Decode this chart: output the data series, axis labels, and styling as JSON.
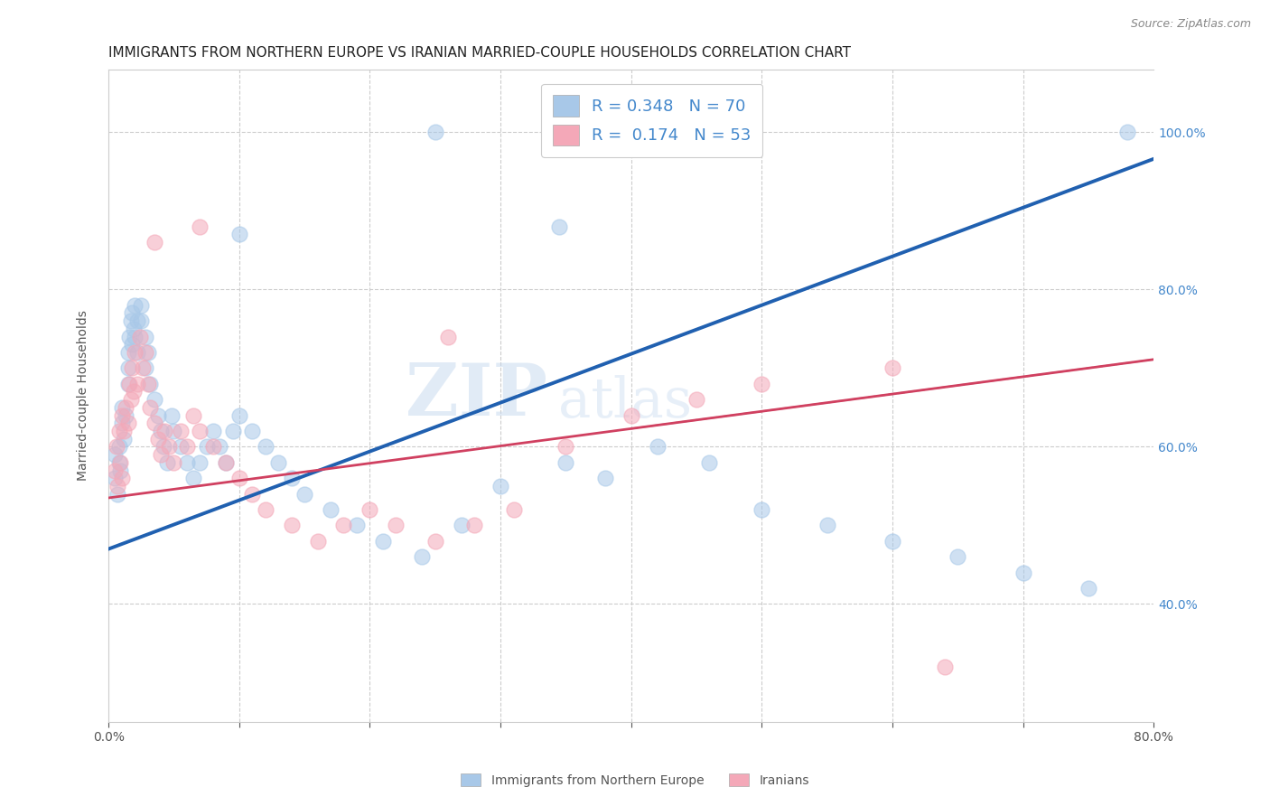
{
  "title": "IMMIGRANTS FROM NORTHERN EUROPE VS IRANIAN MARRIED-COUPLE HOUSEHOLDS CORRELATION CHART",
  "source": "Source: ZipAtlas.com",
  "ylabel": "Married-couple Households",
  "xlim": [
    0.0,
    0.8
  ],
  "ylim": [
    0.25,
    1.08
  ],
  "blue_R": 0.348,
  "blue_N": 70,
  "pink_R": 0.174,
  "pink_N": 53,
  "blue_color": "#a8c8e8",
  "pink_color": "#f4a8b8",
  "blue_line_color": "#2060b0",
  "pink_line_color": "#d04060",
  "watermark_zip": "ZIP",
  "watermark_atlas": "atlas",
  "legend_label_blue": "Immigrants from Northern Europe",
  "legend_label_pink": "Iranians",
  "blue_line_intercept": 0.47,
  "blue_line_slope": 0.62,
  "pink_line_intercept": 0.535,
  "pink_line_slope": 0.22,
  "blue_scatter_x": [
    0.005,
    0.005,
    0.007,
    0.008,
    0.008,
    0.009,
    0.01,
    0.01,
    0.012,
    0.013,
    0.015,
    0.015,
    0.015,
    0.016,
    0.017,
    0.018,
    0.018,
    0.019,
    0.02,
    0.02,
    0.022,
    0.022,
    0.025,
    0.025,
    0.028,
    0.028,
    0.03,
    0.032,
    0.035,
    0.038,
    0.04,
    0.042,
    0.045,
    0.048,
    0.05,
    0.055,
    0.06,
    0.065,
    0.07,
    0.075,
    0.08,
    0.085,
    0.09,
    0.095,
    0.1,
    0.11,
    0.12,
    0.13,
    0.14,
    0.15,
    0.17,
    0.19,
    0.21,
    0.24,
    0.27,
    0.3,
    0.35,
    0.38,
    0.42,
    0.46,
    0.5,
    0.55,
    0.6,
    0.65,
    0.7,
    0.75,
    0.345,
    0.1,
    0.25,
    0.78
  ],
  "blue_scatter_y": [
    0.56,
    0.59,
    0.54,
    0.6,
    0.58,
    0.57,
    0.63,
    0.65,
    0.61,
    0.64,
    0.7,
    0.72,
    0.68,
    0.74,
    0.76,
    0.73,
    0.77,
    0.75,
    0.78,
    0.74,
    0.76,
    0.72,
    0.78,
    0.76,
    0.74,
    0.7,
    0.72,
    0.68,
    0.66,
    0.64,
    0.62,
    0.6,
    0.58,
    0.64,
    0.62,
    0.6,
    0.58,
    0.56,
    0.58,
    0.6,
    0.62,
    0.6,
    0.58,
    0.62,
    0.64,
    0.62,
    0.6,
    0.58,
    0.56,
    0.54,
    0.52,
    0.5,
    0.48,
    0.46,
    0.5,
    0.55,
    0.58,
    0.56,
    0.6,
    0.58,
    0.52,
    0.5,
    0.48,
    0.46,
    0.44,
    0.42,
    0.88,
    0.87,
    1.0,
    1.0
  ],
  "pink_scatter_x": [
    0.005,
    0.006,
    0.007,
    0.008,
    0.009,
    0.01,
    0.01,
    0.012,
    0.013,
    0.015,
    0.016,
    0.017,
    0.018,
    0.019,
    0.02,
    0.022,
    0.024,
    0.026,
    0.028,
    0.03,
    0.032,
    0.035,
    0.038,
    0.04,
    0.043,
    0.046,
    0.05,
    0.055,
    0.06,
    0.065,
    0.07,
    0.08,
    0.09,
    0.1,
    0.11,
    0.12,
    0.14,
    0.16,
    0.18,
    0.2,
    0.22,
    0.25,
    0.28,
    0.31,
    0.35,
    0.4,
    0.45,
    0.5,
    0.6,
    0.64,
    0.07,
    0.035,
    0.26
  ],
  "pink_scatter_y": [
    0.57,
    0.6,
    0.55,
    0.62,
    0.58,
    0.56,
    0.64,
    0.62,
    0.65,
    0.63,
    0.68,
    0.66,
    0.7,
    0.67,
    0.72,
    0.68,
    0.74,
    0.7,
    0.72,
    0.68,
    0.65,
    0.63,
    0.61,
    0.59,
    0.62,
    0.6,
    0.58,
    0.62,
    0.6,
    0.64,
    0.62,
    0.6,
    0.58,
    0.56,
    0.54,
    0.52,
    0.5,
    0.48,
    0.5,
    0.52,
    0.5,
    0.48,
    0.5,
    0.52,
    0.6,
    0.64,
    0.66,
    0.68,
    0.7,
    0.32,
    0.88,
    0.86,
    0.74
  ],
  "background_color": "#ffffff",
  "grid_color": "#cccccc",
  "title_fontsize": 11,
  "axis_label_fontsize": 10,
  "tick_fontsize": 10,
  "legend_fontsize": 13
}
